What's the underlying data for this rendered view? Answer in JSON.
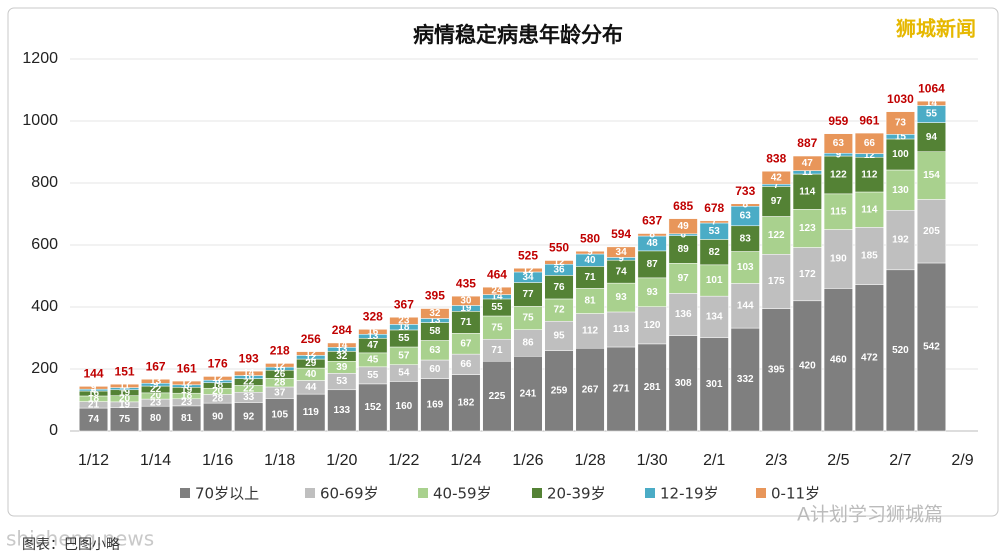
{
  "chart_data": {
    "type": "stacked_bar",
    "title": "病情稳定病患年龄分布",
    "categories": [
      "1/12",
      null,
      "1/14",
      null,
      "1/16",
      null,
      "1/18",
      null,
      "1/20",
      null,
      "1/22",
      null,
      "1/24",
      null,
      "1/26",
      null,
      "1/28",
      null,
      "1/30",
      null,
      "2/1",
      null,
      "2/3",
      null,
      "2/5",
      null,
      "2/7",
      null,
      "2/9"
    ],
    "series": [
      {
        "name": "70岁以上",
        "color": "#7f7f7f",
        "values": [
          74,
          75,
          80,
          81,
          90,
          92,
          105,
          119,
          133,
          152,
          160,
          169,
          182,
          225,
          241,
          259,
          267,
          271,
          281,
          308,
          301,
          332,
          395,
          420,
          460,
          472,
          520,
          542,
          null
        ]
      },
      {
        "name": "60-69岁",
        "color": "#bfbfbf",
        "values": [
          21,
          19,
          23,
          23,
          28,
          33,
          37,
          44,
          53,
          55,
          54,
          60,
          66,
          71,
          86,
          95,
          112,
          113,
          120,
          136,
          134,
          144,
          175,
          172,
          190,
          185,
          192,
          205,
          null
        ]
      },
      {
        "name": "40-59岁",
        "color": "#a9d18e",
        "values": [
          18,
          20,
          20,
          18,
          20,
          22,
          28,
          40,
          39,
          45,
          57,
          63,
          67,
          75,
          75,
          72,
          81,
          93,
          93,
          97,
          101,
          103,
          122,
          123,
          115,
          114,
          130,
          154,
          null
        ]
      },
      {
        "name": "20-39岁",
        "color": "#548235",
        "values": [
          16,
          19,
          22,
          19,
          18,
          22,
          26,
          29,
          32,
          47,
          55,
          58,
          71,
          55,
          77,
          76,
          71,
          74,
          87,
          89,
          82,
          83,
          97,
          114,
          122,
          112,
          100,
          94,
          null
        ]
      },
      {
        "name": "12-19岁",
        "color": "#4bacc6",
        "values": [
          6,
          7,
          9,
          8,
          8,
          10,
          10,
          12,
          13,
          13,
          18,
          13,
          19,
          14,
          34,
          36,
          40,
          9,
          48,
          6,
          53,
          63,
          7,
          11,
          9,
          12,
          15,
          55,
          null
        ]
      },
      {
        "name": "0-11岁",
        "color": "#e8965a",
        "values": [
          9,
          11,
          13,
          12,
          12,
          14,
          12,
          12,
          14,
          16,
          23,
          32,
          30,
          24,
          12,
          12,
          9,
          34,
          8,
          49,
          7,
          8,
          42,
          47,
          63,
          66,
          73,
          14,
          null
        ]
      }
    ],
    "totals": [
      144,
      151,
      167,
      161,
      176,
      193,
      218,
      256,
      284,
      328,
      367,
      395,
      435,
      464,
      525,
      550,
      580,
      594,
      637,
      685,
      678,
      733,
      838,
      887,
      959,
      961,
      1030,
      1064,
      null
    ],
    "total_color": "#c00000",
    "ylim": [
      0,
      1200
    ],
    "yticks": [
      0,
      200,
      400,
      600,
      800,
      1000,
      1200
    ],
    "grid": true
  },
  "watermarks": {
    "top_right": "狮城新闻",
    "bottom_left": "shicheng.news",
    "bottom_left_sub": "图表：巴图小略",
    "bottom_right": "A计划学习狮城篇"
  }
}
